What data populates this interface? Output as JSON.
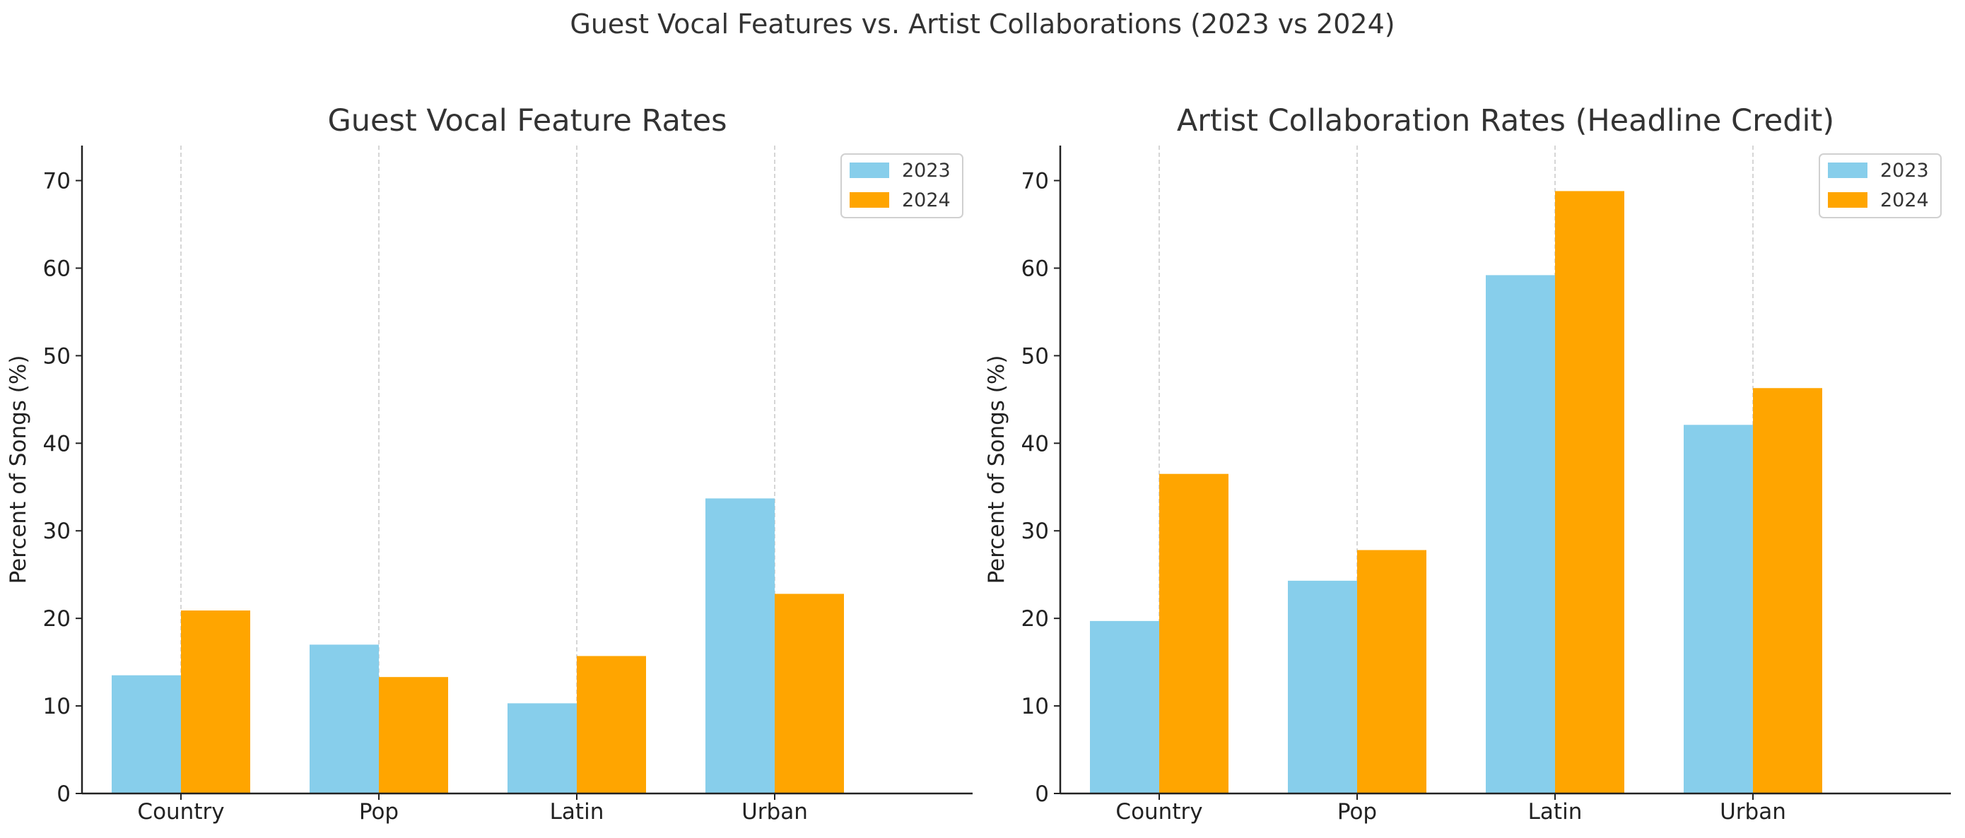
{
  "figure_title": "Guest Vocal Features vs. Artist Collaborations (2023 vs 2024)",
  "colors": {
    "2023": "#87CEEB",
    "2024": "#FFA500"
  },
  "chart_data": [
    {
      "type": "bar",
      "title": "Guest Vocal Feature Rates",
      "xlabel": "",
      "ylabel": "Percent of Songs (%)",
      "categories": [
        "Country",
        "Pop",
        "Latin",
        "Urban"
      ],
      "series": [
        {
          "name": "2023",
          "values": [
            13.5,
            17.0,
            10.3,
            33.7
          ]
        },
        {
          "name": "2024",
          "values": [
            20.9,
            13.3,
            15.7,
            22.8
          ]
        }
      ],
      "ylim": [
        0,
        74
      ],
      "yticks": [
        0,
        10,
        20,
        30,
        40,
        50,
        60,
        70
      ],
      "grid": "vertical dashed at categories",
      "legend_position": "top-right"
    },
    {
      "type": "bar",
      "title": "Artist Collaboration Rates (Headline Credit)",
      "xlabel": "",
      "ylabel": "Percent of Songs (%)",
      "categories": [
        "Country",
        "Pop",
        "Latin",
        "Urban"
      ],
      "series": [
        {
          "name": "2023",
          "values": [
            19.7,
            24.3,
            59.2,
            42.1
          ]
        },
        {
          "name": "2024",
          "values": [
            36.5,
            27.8,
            68.8,
            46.3
          ]
        }
      ],
      "ylim": [
        0,
        74
      ],
      "yticks": [
        0,
        10,
        20,
        30,
        40,
        50,
        60,
        70
      ],
      "grid": "vertical dashed at categories",
      "legend_position": "top-right"
    }
  ]
}
